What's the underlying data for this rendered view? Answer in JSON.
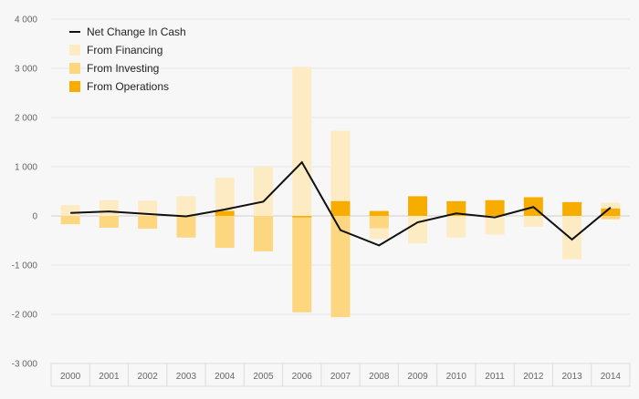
{
  "chart_data": {
    "type": "bar",
    "categories": [
      "2000",
      "2001",
      "2002",
      "2003",
      "2004",
      "2005",
      "2006",
      "2007",
      "2008",
      "2009",
      "2010",
      "2011",
      "2012",
      "2013",
      "2014"
    ],
    "y_ticks": [
      4000,
      3000,
      2000,
      1000,
      0,
      -1000,
      -2000,
      -3000
    ],
    "y_tick_labels": [
      "4 000",
      "3 000",
      "2 000",
      "1 000",
      "0",
      "-1 000",
      "-2 000",
      "-3 000"
    ],
    "ylim": [
      -3000,
      4000
    ],
    "grid": true,
    "legend_position": "top-left",
    "legend": [
      {
        "label": "Net Change In Cash",
        "kind": "line",
        "color": "#111111"
      },
      {
        "label": "From Financing",
        "kind": "box",
        "color": "#fdebc3"
      },
      {
        "label": "From Investing",
        "kind": "box",
        "color": "#fcd780"
      },
      {
        "label": "From Operations",
        "kind": "box",
        "color": "#f7ac00"
      }
    ],
    "series": [
      {
        "name": "From Operations",
        "color": "#f7ac00",
        "values": [
          0,
          0,
          0,
          0,
          100,
          0,
          -30,
          300,
          100,
          400,
          300,
          320,
          380,
          280,
          150
        ]
      },
      {
        "name": "From Investing",
        "color": "#fcd780",
        "values": [
          -170,
          -240,
          -260,
          -440,
          -650,
          -720,
          -1960,
          -2060,
          -250,
          0,
          0,
          0,
          0,
          0,
          -70
        ]
      },
      {
        "name": "From Financing",
        "color": "#fdebc3",
        "values": [
          220,
          320,
          310,
          400,
          780,
          1000,
          3030,
          1730,
          -470,
          -560,
          -440,
          -380,
          -220,
          -880,
          270
        ]
      },
      {
        "name": "Net Change In Cash",
        "color": "#111111",
        "values": [
          60,
          90,
          40,
          -10,
          130,
          290,
          1090,
          -290,
          -600,
          -130,
          50,
          -30,
          180,
          -480,
          170
        ]
      }
    ]
  }
}
